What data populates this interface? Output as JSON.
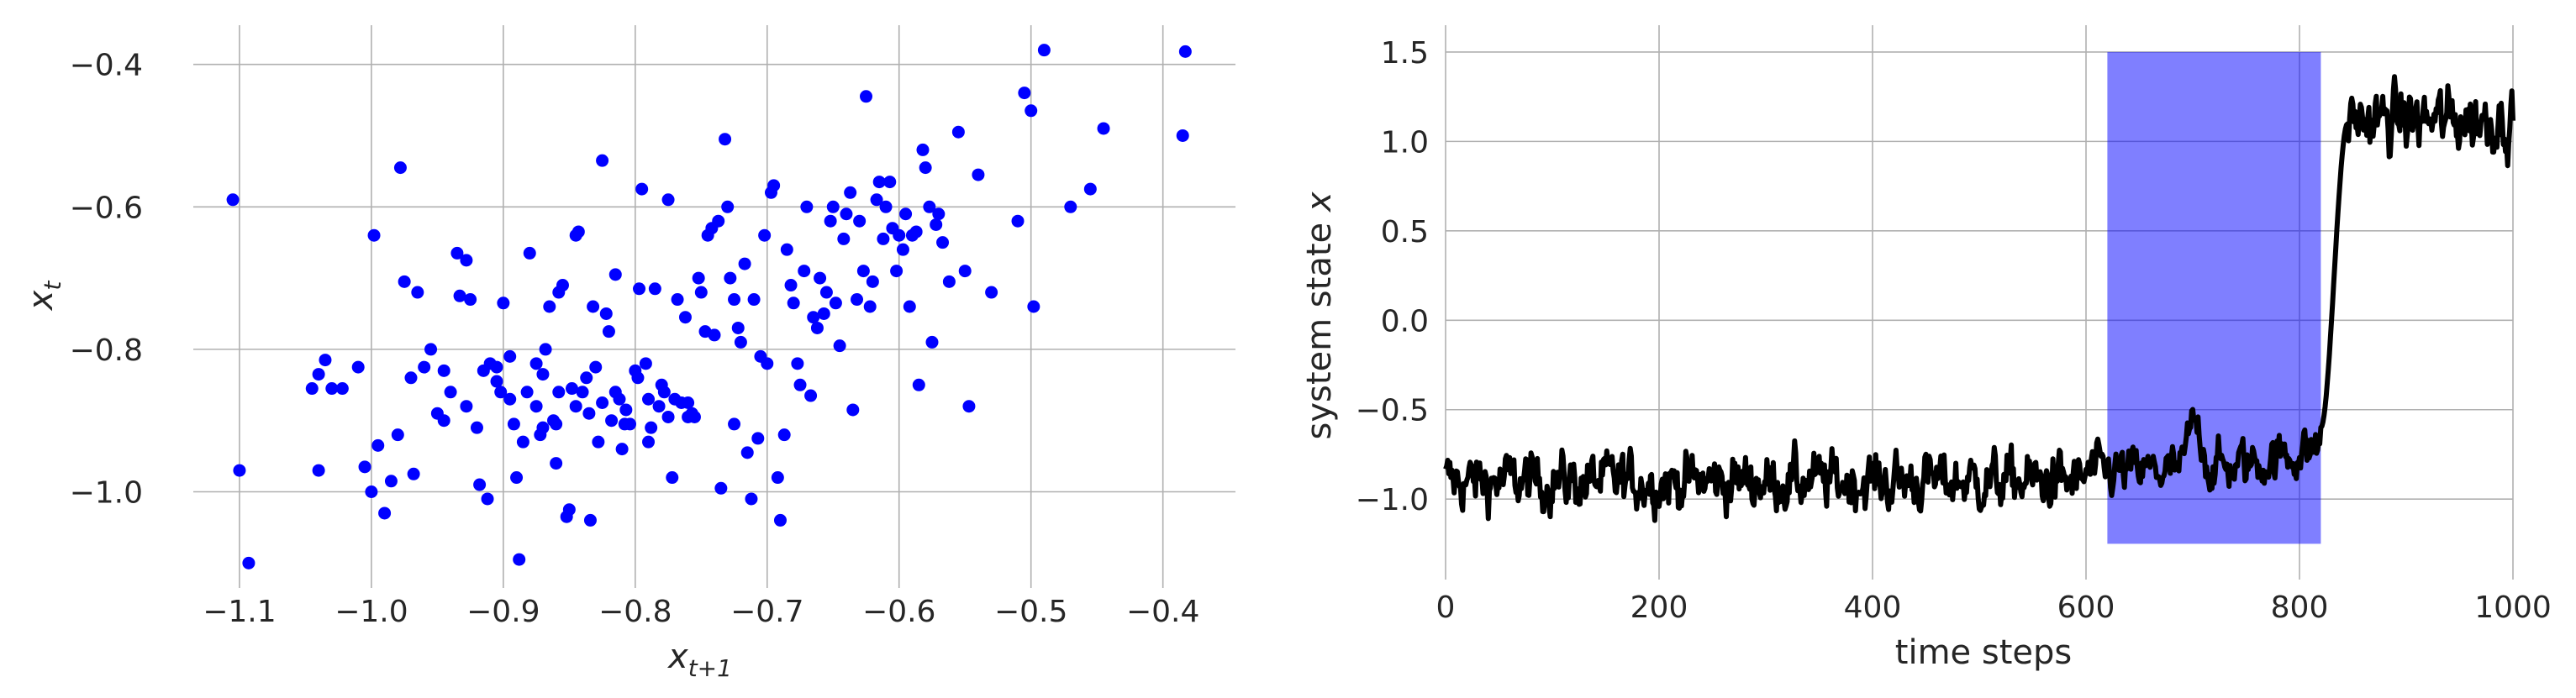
{
  "chart_data": [
    {
      "type": "scatter",
      "title": "",
      "xlabel": "x",
      "xlabel_subscript": "t+1",
      "ylabel": "x",
      "ylabel_subscript": "t",
      "xlim": [
        -1.135,
        -0.345
      ],
      "ylim": [
        -1.135,
        -0.345
      ],
      "xticks": [
        -1.1,
        -1.0,
        -0.9,
        -0.8,
        -0.7,
        -0.6,
        -0.5,
        -0.4
      ],
      "xtick_labels": [
        "−1.1",
        "−1.0",
        "−0.9",
        "−0.8",
        "−0.7",
        "−0.6",
        "−0.5",
        "−0.4"
      ],
      "yticks": [
        -1.0,
        -0.8,
        -0.6,
        -0.4
      ],
      "ytick_labels": [
        "−1.0",
        "−0.8",
        "−0.6",
        "−0.4"
      ],
      "grid": true,
      "marker_color": "#0000ff",
      "points": [
        [
          -1.105,
          -0.59
        ],
        [
          -1.1,
          -0.97
        ],
        [
          -1.093,
          -1.1
        ],
        [
          -1.045,
          -0.855
        ],
        [
          -1.04,
          -0.835
        ],
        [
          -1.035,
          -0.815
        ],
        [
          -1.03,
          -0.855
        ],
        [
          -1.022,
          -0.855
        ],
        [
          -1.04,
          -0.97
        ],
        [
          -1.01,
          -0.825
        ],
        [
          -1.005,
          -0.965
        ],
        [
          -1.0,
          -1.0
        ],
        [
          -0.998,
          -0.64
        ],
        [
          -0.995,
          -0.935
        ],
        [
          -0.99,
          -1.03
        ],
        [
          -0.985,
          -0.985
        ],
        [
          -0.98,
          -0.92
        ],
        [
          -0.978,
          -0.545
        ],
        [
          -0.975,
          -0.705
        ],
        [
          -0.97,
          -0.84
        ],
        [
          -0.968,
          -0.975
        ],
        [
          -0.965,
          -0.72
        ],
        [
          -0.96,
          -0.825
        ],
        [
          -0.955,
          -0.8
        ],
        [
          -0.95,
          -0.89
        ],
        [
          -0.945,
          -0.9
        ],
        [
          -0.94,
          -0.86
        ],
        [
          -0.935,
          -0.665
        ],
        [
          -0.933,
          -0.725
        ],
        [
          -0.928,
          -0.675
        ],
        [
          -0.925,
          -0.73
        ],
        [
          -0.92,
          -0.91
        ],
        [
          -0.918,
          -0.99
        ],
        [
          -0.915,
          -0.83
        ],
        [
          -0.912,
          -1.01
        ],
        [
          -0.91,
          -0.82
        ],
        [
          -0.905,
          -0.845
        ],
        [
          -0.902,
          -0.86
        ],
        [
          -0.9,
          -0.735
        ],
        [
          -0.895,
          -0.81
        ],
        [
          -0.892,
          -0.905
        ],
        [
          -0.89,
          -0.98
        ],
        [
          -0.888,
          -1.095
        ],
        [
          -0.885,
          -0.93
        ],
        [
          -0.882,
          -0.86
        ],
        [
          -0.88,
          -0.665
        ],
        [
          -0.875,
          -0.82
        ],
        [
          -0.872,
          -0.92
        ],
        [
          -0.87,
          -0.91
        ],
        [
          -0.868,
          -0.8
        ],
        [
          -0.865,
          -0.74
        ],
        [
          -0.862,
          -0.9
        ],
        [
          -0.86,
          -0.96
        ],
        [
          -0.858,
          -0.72
        ],
        [
          -0.855,
          -0.71
        ],
        [
          -0.852,
          -1.035
        ],
        [
          -0.85,
          -1.025
        ],
        [
          -0.848,
          -0.855
        ],
        [
          -0.845,
          -0.64
        ],
        [
          -0.843,
          -0.635
        ],
        [
          -0.84,
          -0.86
        ],
        [
          -0.837,
          -0.84
        ],
        [
          -0.834,
          -1.04
        ],
        [
          -0.832,
          -0.74
        ],
        [
          -0.83,
          -0.825
        ],
        [
          -0.828,
          -0.93
        ],
        [
          -0.825,
          -0.535
        ],
        [
          -0.822,
          -0.75
        ],
        [
          -0.82,
          -0.775
        ],
        [
          -0.818,
          -0.9
        ],
        [
          -0.815,
          -0.695
        ],
        [
          -0.812,
          -0.87
        ],
        [
          -0.81,
          -0.94
        ],
        [
          -0.807,
          -0.885
        ],
        [
          -0.804,
          -0.905
        ],
        [
          -0.8,
          -0.83
        ],
        [
          -0.797,
          -0.715
        ],
        [
          -0.795,
          -0.575
        ],
        [
          -0.792,
          -0.82
        ],
        [
          -0.79,
          -0.93
        ],
        [
          -0.788,
          -0.91
        ],
        [
          -0.785,
          -0.715
        ],
        [
          -0.782,
          -0.88
        ],
        [
          -0.78,
          -0.85
        ],
        [
          -0.778,
          -0.86
        ],
        [
          -0.775,
          -0.59
        ],
        [
          -0.772,
          -0.98
        ],
        [
          -0.77,
          -0.87
        ],
        [
          -0.768,
          -0.73
        ],
        [
          -0.765,
          -0.875
        ],
        [
          -0.762,
          -0.755
        ],
        [
          -0.76,
          -0.895
        ],
        [
          -0.757,
          -0.89
        ],
        [
          -0.755,
          -0.895
        ],
        [
          -0.752,
          -0.7
        ],
        [
          -0.75,
          -0.72
        ],
        [
          -0.747,
          -0.775
        ],
        [
          -0.745,
          -0.64
        ],
        [
          -0.742,
          -0.63
        ],
        [
          -0.74,
          -0.78
        ],
        [
          -0.737,
          -0.62
        ],
        [
          -0.735,
          -0.995
        ],
        [
          -0.732,
          -0.505
        ],
        [
          -0.73,
          -0.6
        ],
        [
          -0.728,
          -0.7
        ],
        [
          -0.725,
          -0.73
        ],
        [
          -0.722,
          -0.77
        ],
        [
          -0.72,
          -0.79
        ],
        [
          -0.717,
          -0.68
        ],
        [
          -0.715,
          -0.945
        ],
        [
          -0.712,
          -1.01
        ],
        [
          -0.71,
          -0.73
        ],
        [
          -0.707,
          -0.925
        ],
        [
          -0.705,
          -0.81
        ],
        [
          -0.702,
          -0.64
        ],
        [
          -0.7,
          -0.82
        ],
        [
          -0.697,
          -0.58
        ],
        [
          -0.695,
          -0.57
        ],
        [
          -0.692,
          -0.98
        ],
        [
          -0.69,
          -1.04
        ],
        [
          -0.687,
          -0.92
        ],
        [
          -0.685,
          -0.66
        ],
        [
          -0.682,
          -0.71
        ],
        [
          -0.68,
          -0.735
        ],
        [
          -0.677,
          -0.82
        ],
        [
          -0.675,
          -0.85
        ],
        [
          -0.672,
          -0.69
        ],
        [
          -0.67,
          -0.6
        ],
        [
          -0.667,
          -0.865
        ],
        [
          -0.665,
          -0.755
        ],
        [
          -0.662,
          -0.77
        ],
        [
          -0.66,
          -0.7
        ],
        [
          -0.657,
          -0.75
        ],
        [
          -0.655,
          -0.72
        ],
        [
          -0.652,
          -0.62
        ],
        [
          -0.65,
          -0.6
        ],
        [
          -0.648,
          -0.735
        ],
        [
          -0.645,
          -0.795
        ],
        [
          -0.642,
          -0.645
        ],
        [
          -0.64,
          -0.61
        ],
        [
          -0.637,
          -0.58
        ],
        [
          -0.635,
          -0.885
        ],
        [
          -0.632,
          -0.73
        ],
        [
          -0.63,
          -0.62
        ],
        [
          -0.627,
          -0.69
        ],
        [
          -0.625,
          -0.445
        ],
        [
          -0.622,
          -0.74
        ],
        [
          -0.62,
          -0.705
        ],
        [
          -0.617,
          -0.59
        ],
        [
          -0.615,
          -0.565
        ],
        [
          -0.612,
          -0.645
        ],
        [
          -0.61,
          -0.6
        ],
        [
          -0.607,
          -0.565
        ],
        [
          -0.605,
          -0.63
        ],
        [
          -0.602,
          -0.69
        ],
        [
          -0.6,
          -0.64
        ],
        [
          -0.597,
          -0.66
        ],
        [
          -0.595,
          -0.61
        ],
        [
          -0.592,
          -0.74
        ],
        [
          -0.59,
          -0.64
        ],
        [
          -0.587,
          -0.635
        ],
        [
          -0.585,
          -0.85
        ],
        [
          -0.582,
          -0.52
        ],
        [
          -0.58,
          -0.545
        ],
        [
          -0.577,
          -0.6
        ],
        [
          -0.575,
          -0.79
        ],
        [
          -0.572,
          -0.625
        ],
        [
          -0.57,
          -0.61
        ],
        [
          -0.567,
          -0.65
        ],
        [
          -0.562,
          -0.705
        ],
        [
          -0.555,
          -0.495
        ],
        [
          -0.55,
          -0.69
        ],
        [
          -0.547,
          -0.88
        ],
        [
          -0.54,
          -0.555
        ],
        [
          -0.53,
          -0.72
        ],
        [
          -0.51,
          -0.62
        ],
        [
          -0.505,
          -0.44
        ],
        [
          -0.5,
          -0.465
        ],
        [
          -0.498,
          -0.74
        ],
        [
          -0.49,
          -0.38
        ],
        [
          -0.47,
          -0.6
        ],
        [
          -0.455,
          -0.575
        ],
        [
          -0.445,
          -0.49
        ],
        [
          -0.385,
          -0.5
        ],
        [
          -0.383,
          -0.382
        ],
        [
          -0.905,
          -0.825
        ],
        [
          -0.86,
          -0.905
        ],
        [
          -0.845,
          -0.88
        ],
        [
          -0.825,
          -0.875
        ],
        [
          -0.808,
          -0.905
        ],
        [
          -0.79,
          -0.87
        ],
        [
          -0.775,
          -0.895
        ],
        [
          -0.76,
          -0.875
        ],
        [
          -0.725,
          -0.905
        ],
        [
          -0.895,
          -0.87
        ],
        [
          -0.875,
          -0.88
        ],
        [
          -0.835,
          -0.89
        ],
        [
          -0.815,
          -0.86
        ],
        [
          -0.798,
          -0.84
        ],
        [
          -0.928,
          -0.88
        ],
        [
          -0.945,
          -0.83
        ],
        [
          -0.87,
          -0.835
        ],
        [
          -0.858,
          -0.86
        ]
      ]
    },
    {
      "type": "line",
      "title": "",
      "xlabel": "time steps",
      "ylabel": "system state",
      "ylabel_var": "x",
      "xlim": [
        0,
        1000
      ],
      "ylim": [
        -1.45,
        1.65
      ],
      "xticks": [
        0,
        200,
        400,
        600,
        800,
        1000
      ],
      "xtick_labels": [
        "0",
        "200",
        "400",
        "600",
        "800",
        "1000"
      ],
      "yticks": [
        -1.0,
        -0.5,
        0.0,
        0.5,
        1.0,
        1.5
      ],
      "ytick_labels": [
        "−1.0",
        "−0.5",
        "0.0",
        "0.5",
        "1.0",
        "1.5"
      ],
      "grid": true,
      "line_color": "#000000",
      "highlight": {
        "x0": 620,
        "x1": 820,
        "y0": -1.25,
        "y1": 1.5,
        "color": "#0000ff",
        "alpha": 0.5
      },
      "series": [
        {
          "name": "system state x",
          "x_start": 0,
          "x_step": 1,
          "segments": [
            {
              "x0": 0,
              "x1": 600,
              "mean": -0.9,
              "noise": 0.12
            },
            {
              "x0": 600,
              "x1": 820,
              "mean": -0.85,
              "noise": 0.1,
              "drift_to": -0.6
            },
            {
              "x0": 820,
              "x1": 845,
              "transition_to": 1.1
            },
            {
              "x0": 845,
              "x1": 1000,
              "mean": 1.12,
              "noise": 0.13
            }
          ],
          "notable_values": {
            "min": -1.28,
            "max_before_shift": -0.4,
            "max_after_shift": 1.5,
            "min_after_shift": 0.65
          }
        }
      ]
    }
  ]
}
